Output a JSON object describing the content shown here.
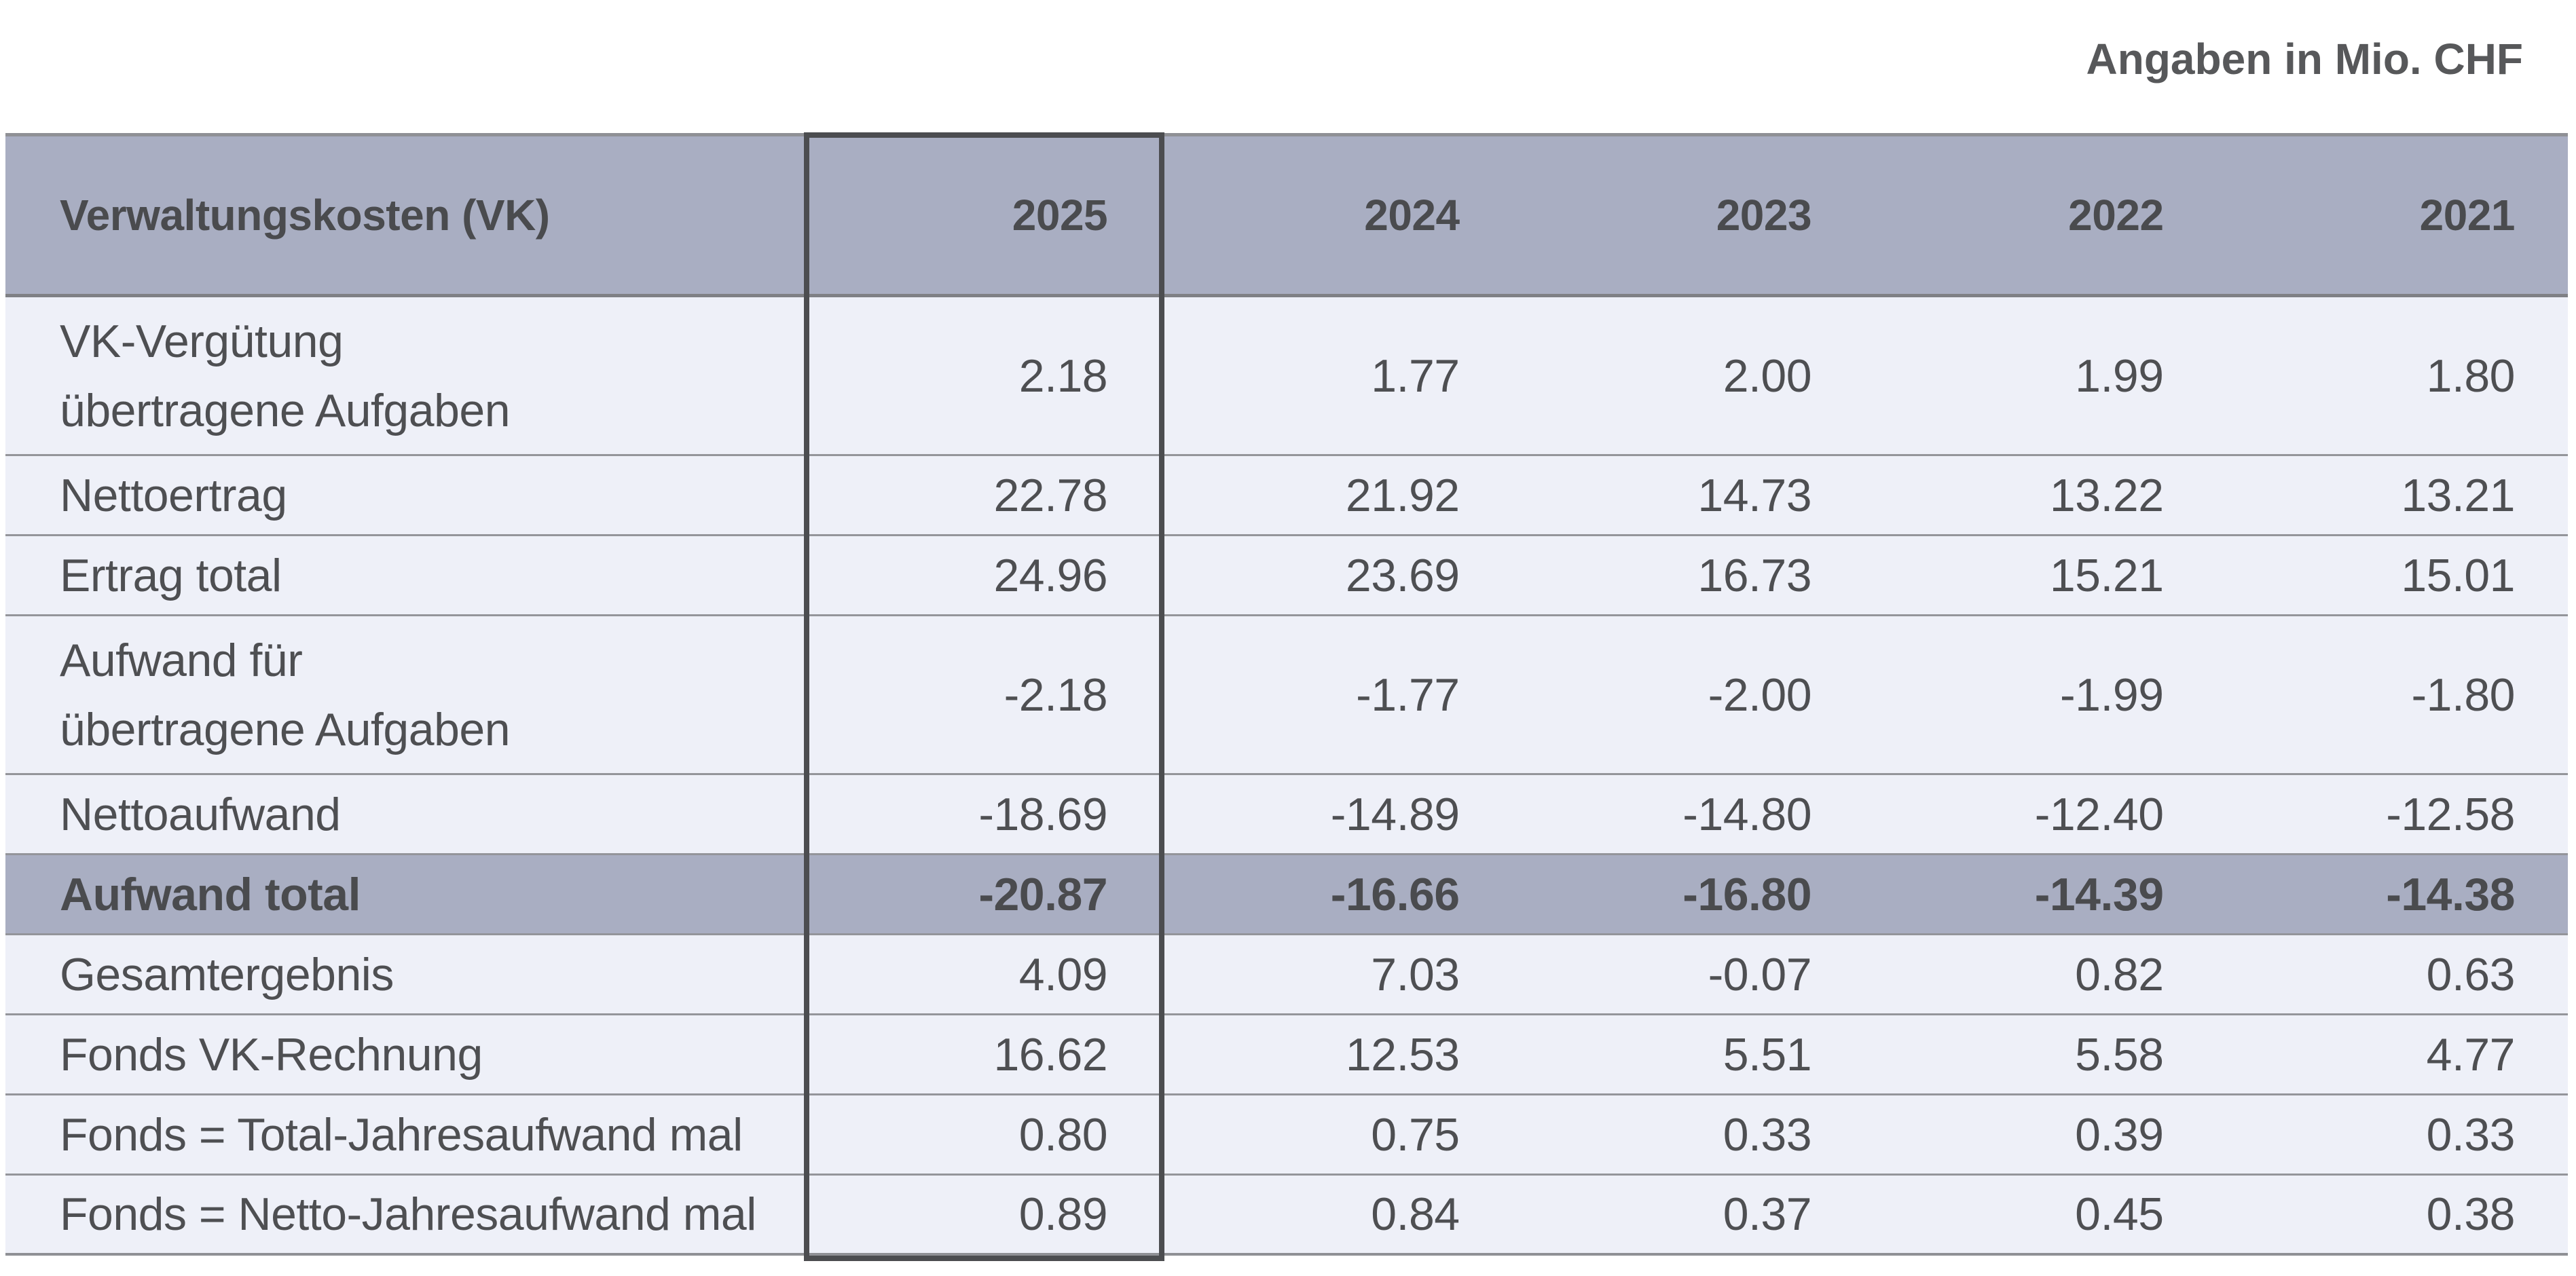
{
  "units_note": "Angaben in Mio. CHF",
  "table": {
    "header": {
      "label": "Verwaltungskosten (VK)",
      "years": [
        "2025",
        "2024",
        "2023",
        "2022",
        "2021"
      ]
    },
    "highlighted_year": "2025",
    "rows": [
      {
        "label": "VK-Vergütung\nübertragene Aufgaben",
        "values": [
          "2.18",
          "1.77",
          "2.00",
          "1.99",
          "1.80"
        ]
      },
      {
        "label": "Nettoertrag",
        "values": [
          "22.78",
          "21.92",
          "14.73",
          "13.22",
          "13.21"
        ]
      },
      {
        "label": "Ertrag total",
        "values": [
          "24.96",
          "23.69",
          "16.73",
          "15.21",
          "15.01"
        ]
      },
      {
        "label": "Aufwand für\nübertragene Aufgaben",
        "values": [
          "-2.18",
          "-1.77",
          "-2.00",
          "-1.99",
          "-1.80"
        ]
      },
      {
        "label": "Nettoaufwand",
        "values": [
          "-18.69",
          "-14.89",
          "-14.80",
          "-12.40",
          "-12.58"
        ]
      },
      {
        "label": "Aufwand total",
        "values": [
          "-20.87",
          "-16.66",
          "-16.80",
          "-14.39",
          "-14.38"
        ],
        "emphasis": true
      },
      {
        "label": "Gesamtergebnis",
        "values": [
          "4.09",
          "7.03",
          "-0.07",
          "0.82",
          "0.63"
        ]
      },
      {
        "label": "Fonds VK-Rechnung",
        "values": [
          "16.62",
          "12.53",
          "5.51",
          "5.58",
          "4.77"
        ]
      },
      {
        "label": "Fonds = Total-Jahresaufwand mal",
        "values": [
          "0.80",
          "0.75",
          "0.33",
          "0.39",
          "0.33"
        ]
      },
      {
        "label": "Fonds = Netto-Jahresaufwand mal",
        "values": [
          "0.89",
          "0.84",
          "0.37",
          "0.45",
          "0.38"
        ]
      }
    ]
  },
  "colors": {
    "header_bg": "#a9aec2",
    "row_bg": "#eef0f8",
    "separator": "#94959a",
    "header_separator": "#7f8085",
    "outer_border": "#8f9095",
    "highlight_border": "#4c4d50",
    "text": "#4e4f52",
    "header_text": "#4a4b4e",
    "heading_text": "#57585a"
  }
}
